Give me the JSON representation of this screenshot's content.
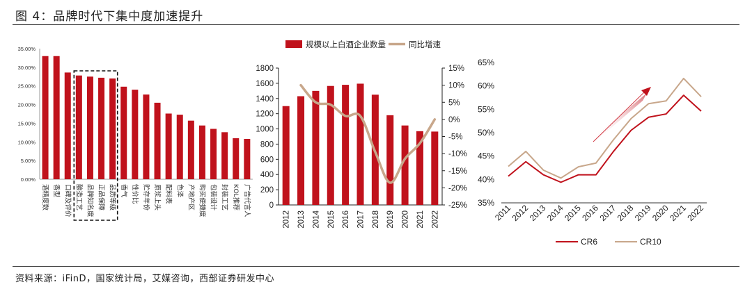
{
  "figure": {
    "title": "图 4：品牌时代下集中度加速提升",
    "source": "资料来源：iFinD，国家统计局，艾媒咨询，西部证券研发中心"
  },
  "colors": {
    "red": "#c0121c",
    "tan": "#c8a78b",
    "axis": "#222222"
  },
  "chart_data": [
    {
      "type": "bar",
      "categories": [
        "酒精度数",
        "香型",
        "口碑及评价",
        "酿造工艺",
        "品牌知名度",
        "正品保障",
        "品质等级",
        "香气",
        "性价比",
        "贮存年份",
        "原浆上头",
        "配料表",
        "色泽",
        "产地产区",
        "购买便捷度",
        "包装设计",
        "封装工艺",
        "KOL推荐",
        "广告代言人"
      ],
      "values": [
        33.0,
        33.0,
        28.6,
        27.8,
        27.5,
        27.2,
        27.0,
        24.8,
        24.0,
        22.7,
        20.5,
        17.6,
        17.3,
        15.7,
        14.4,
        13.5,
        12.6,
        11.0,
        10.8
      ],
      "highlight_range": [
        "酿造工艺",
        "品质等级"
      ],
      "ylim": [
        0,
        35
      ],
      "yticks": [
        "0.00%",
        "5.00%",
        "10.00%",
        "15.00%",
        "20.00%",
        "25.00%",
        "30.00%",
        "35.00%"
      ],
      "title": "",
      "xlabel": "",
      "ylabel": ""
    },
    {
      "type": "bar+line",
      "categories": [
        "2012",
        "2013",
        "2014",
        "2015",
        "2016",
        "2017",
        "2018",
        "2019",
        "2020",
        "2021",
        "2022"
      ],
      "series": [
        {
          "name": "规模以上白酒企业数量",
          "type": "bar",
          "axis": "left",
          "values": [
            1300,
            1430,
            1500,
            1565,
            1580,
            1595,
            1450,
            1180,
            1045,
            970,
            965
          ]
        },
        {
          "name": "同比增速",
          "type": "line",
          "axis": "right",
          "values": [
            null,
            10.0,
            5.0,
            4.3,
            1.0,
            1.0,
            -9.5,
            -18.5,
            -11.5,
            -7.0,
            0.0
          ]
        }
      ],
      "left_ylim": [
        0,
        1800
      ],
      "left_ticks": [
        "0",
        "200",
        "400",
        "600",
        "800",
        "1000",
        "1200",
        "1400",
        "1600",
        "1800"
      ],
      "right_ylim": [
        -25,
        15
      ],
      "right_ticks": [
        "-25%",
        "-20%",
        "-15%",
        "-10%",
        "-5%",
        "0%",
        "5%",
        "10%",
        "15%"
      ],
      "legend": [
        "规模以上白酒企业数量",
        "同比增速"
      ],
      "legend_position": "top"
    },
    {
      "type": "line",
      "x": [
        "2011",
        "2012",
        "2013",
        "2014",
        "2015",
        "2016",
        "2017",
        "2018",
        "2019",
        "2020",
        "2021",
        "2022"
      ],
      "series": [
        {
          "name": "CR6",
          "values": [
            40.7,
            43.8,
            41.0,
            39.4,
            41.0,
            41.0,
            46.0,
            50.5,
            53.3,
            54.0,
            58.0,
            54.6
          ]
        },
        {
          "name": "CR10",
          "values": [
            42.8,
            46.0,
            42.0,
            40.3,
            42.7,
            43.5,
            48.5,
            53.0,
            56.2,
            56.8,
            61.6,
            57.7
          ]
        }
      ],
      "ylim": [
        35,
        65
      ],
      "yticks": [
        "35%",
        "40%",
        "45%",
        "50%",
        "55%",
        "60%",
        "65%"
      ],
      "annotation": "upward trend arrow",
      "legend": [
        "CR6",
        "CR10"
      ],
      "legend_position": "bottom"
    }
  ]
}
